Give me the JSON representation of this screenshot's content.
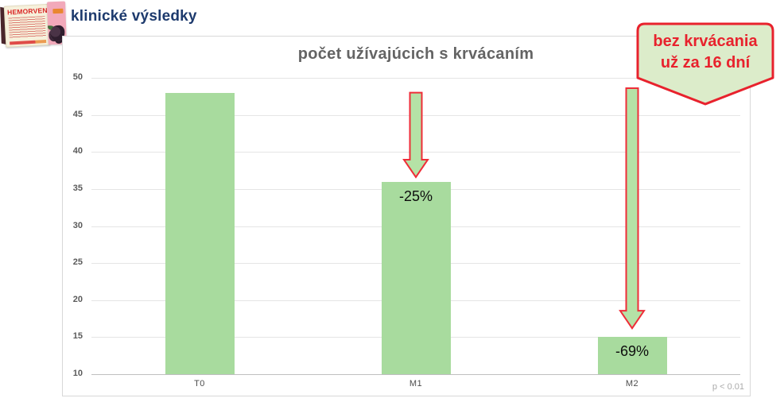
{
  "product": {
    "brand": "HEMORVEN"
  },
  "header": {
    "title": "klinické výsledky"
  },
  "callout": {
    "line1": "bez krvácania",
    "line2": "už za 16 dní"
  },
  "chart_data": {
    "type": "bar",
    "title": "počet užívajúcich s krvácaním",
    "categories": [
      "T0",
      "M1",
      "M2"
    ],
    "values": [
      48,
      36,
      15
    ],
    "ylim": [
      10,
      50
    ],
    "ytick_step": 5,
    "yticks": [
      10,
      15,
      20,
      25,
      30,
      35,
      40,
      45,
      50
    ],
    "grid": true,
    "legend": "none",
    "note": "p < 0.01",
    "annotations": [
      {
        "category": "M1",
        "label": "-25%",
        "arrow_from": 48.0,
        "arrow_to": 36.6
      },
      {
        "category": "M2",
        "label": "-69%",
        "arrow_from": 48.6,
        "arrow_to": 16.2
      }
    ],
    "colors": {
      "bar": "#a8db9e",
      "arrow_fill": "#b5e2a6",
      "arrow_stroke": "#ef2d38"
    }
  },
  "colors": {
    "heading": "#1d3a6d",
    "chart_title": "#646464",
    "badge_fill": "#dcecca",
    "badge_red": "#e8222d",
    "grid": "#e5e5e5",
    "axis_baseline": "#bfbfbf",
    "axis_text": "#5a5a5a",
    "note_text": "#ababab",
    "chart_border": "#d8d8d8",
    "background": "#ffffff"
  }
}
